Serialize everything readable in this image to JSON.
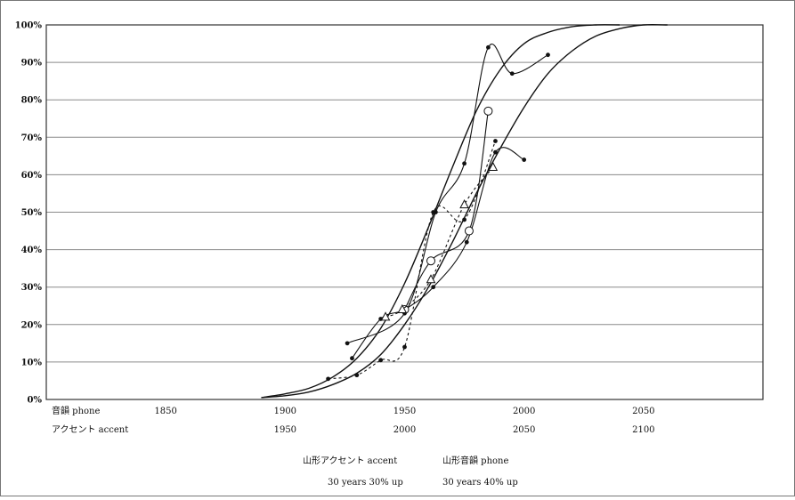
{
  "chart_data": {
    "type": "line",
    "ylim": [
      0,
      100
    ],
    "y_ticks": [
      "0%",
      "10%",
      "20%",
      "30%",
      "40%",
      "50%",
      "60%",
      "70%",
      "80%",
      "90%",
      "100%"
    ],
    "grid": "horizontal",
    "x_axis_phone": {
      "name": "音韻 phone",
      "range": [
        1800,
        2100
      ],
      "ticks": [
        {
          "label": "1850",
          "value": 1850
        },
        {
          "label": "1900",
          "value": 1900
        },
        {
          "label": "1950",
          "value": 1950
        },
        {
          "label": "2000",
          "value": 2000
        },
        {
          "label": "2050",
          "value": 2050
        }
      ]
    },
    "x_axis_accent": {
      "name": "アクセント accent",
      "range": [
        1850,
        2150
      ],
      "ticks": [
        {
          "label": "1950",
          "value": 1950
        },
        {
          "label": "2000",
          "value": 2000
        },
        {
          "label": "2050",
          "value": 2050
        },
        {
          "label": "2100",
          "value": 2100
        }
      ]
    },
    "legend": {
      "placement": "bottom",
      "items": [
        {
          "label": "山形アクセント accent"
        },
        {
          "label": "山形音韻 phone"
        },
        {
          "label": "30 years 30% up"
        },
        {
          "label": "30 years 40% up"
        }
      ]
    },
    "series": [
      {
        "line": "smooth-s-curve",
        "x": [
          1890,
          1900,
          1910,
          1920,
          1930,
          1940,
          1950,
          1960,
          1970,
          1980,
          1990,
          2000,
          2010,
          2020,
          2030,
          2040,
          2050,
          2060
        ],
        "y": [
          0.5,
          1,
          2,
          4,
          7,
          12,
          20,
          30,
          42,
          55,
          67,
          78,
          87,
          93,
          97,
          99,
          100,
          100
        ]
      },
      {
        "line": "smooth-s-curve",
        "x": [
          1890,
          1900,
          1910,
          1920,
          1930,
          1940,
          1950,
          1960,
          1970,
          1980,
          1990,
          2000,
          2010,
          2020,
          2030,
          2040
        ],
        "y": [
          0.5,
          1.5,
          3,
          6,
          11,
          19,
          31,
          46,
          62,
          77,
          88,
          95,
          98,
          99.5,
          100,
          100
        ]
      },
      {
        "marker": "filled",
        "x": [
          1926,
          1950,
          1963,
          1975,
          1985,
          1995,
          2010
        ],
        "y": [
          15,
          23,
          50,
          63,
          94,
          87,
          92
        ]
      },
      {
        "marker": "filled",
        "x": [
          1928,
          1940,
          1950,
          1962,
          1976,
          1988,
          2000
        ],
        "y": [
          11,
          21.5,
          24,
          30,
          42,
          66,
          64
        ]
      },
      {
        "marker": "filled",
        "dash": "dashed",
        "x": [
          1918,
          1930,
          1940,
          1950,
          1962,
          1975,
          1988
        ],
        "y": [
          5.5,
          6.5,
          10.5,
          14,
          50,
          48,
          69
        ]
      },
      {
        "marker": "open",
        "x": [
          1950,
          1961,
          1977,
          1985
        ],
        "y": [
          24,
          37,
          45,
          77
        ]
      },
      {
        "marker": "open-triangle",
        "dash": "dashed",
        "x": [
          1942,
          1949,
          1961,
          1975,
          1987
        ],
        "y": [
          22,
          24,
          32,
          52,
          62
        ]
      }
    ]
  }
}
